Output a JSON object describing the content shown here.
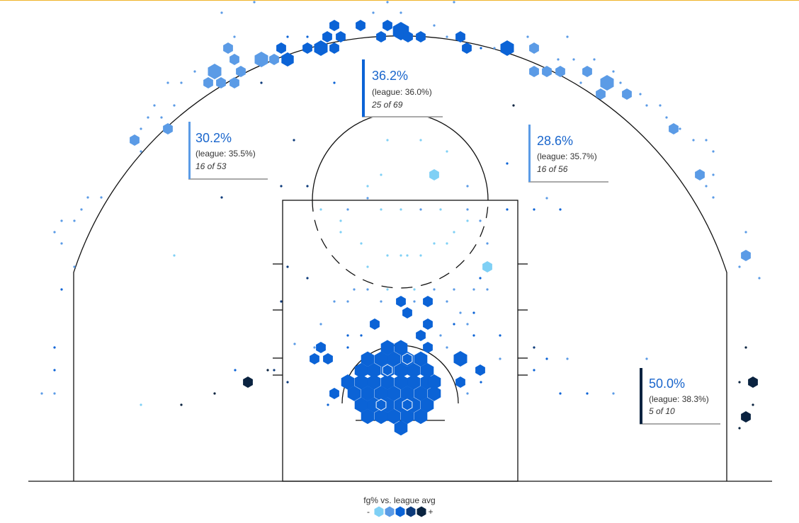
{
  "chart_data": {
    "type": "hexbin-shot-chart",
    "legend": {
      "title": "fg% vs. league avg",
      "low_label": "-",
      "high_label": "+",
      "scale_colors": [
        "#7fd0f5",
        "#5b9be6",
        "#0b63d6",
        "#0c3a7a",
        "#0a2340"
      ]
    },
    "zones": [
      {
        "id": "top-of-key",
        "pct": "36.2%",
        "league": "(league: 36.0%)",
        "made": "25 of 69",
        "accent": "#0b63d6"
      },
      {
        "id": "left-wing",
        "pct": "30.2%",
        "league": "(league: 35.5%)",
        "made": "16 of 53",
        "accent": "#5b9be6"
      },
      {
        "id": "right-wing",
        "pct": "28.6%",
        "league": "(league: 35.7%)",
        "made": "16 of 56",
        "accent": "#5b9be6"
      },
      {
        "id": "right-corner",
        "pct": "50.0%",
        "league": "(league: 38.3%)",
        "made": "5 of 10",
        "accent": "#0a2340"
      }
    ]
  }
}
